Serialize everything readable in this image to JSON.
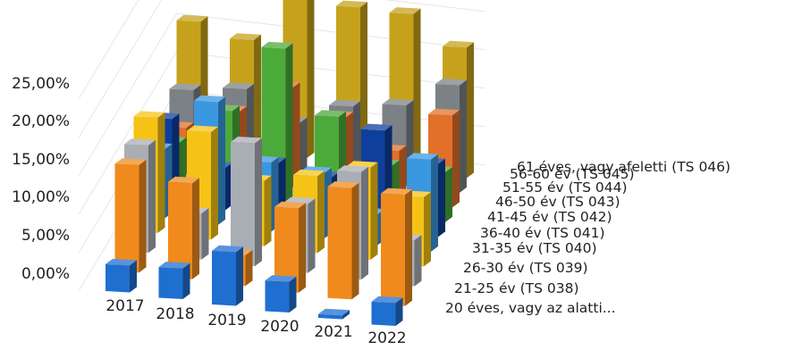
{
  "chart_data": {
    "type": "bar",
    "subtype": "3d-column",
    "categories": [
      "2017",
      "2018",
      "2019",
      "2020",
      "2021",
      "2022"
    ],
    "y_ticks": [
      "0,00%",
      "5,00%",
      "10,00%",
      "15,00%",
      "20,00%",
      "25,00%"
    ],
    "ylim": [
      0,
      25
    ],
    "grid": true,
    "series": [
      {
        "name": "20 éves, vagy az alatti...",
        "color": "#1f6fd1",
        "values": [
          3.5,
          4.0,
          7.0,
          4.0,
          0.5,
          3.0
        ]
      },
      {
        "name": "21-25 év (TS 038)",
        "color": "#f08a1c",
        "values": [
          14.0,
          12.5,
          4.0,
          11.0,
          14.5,
          14.5
        ]
      },
      {
        "name": "26-30 év (TS 039)",
        "color": "#a9aeb5",
        "values": [
          14.0,
          6.0,
          16.0,
          9.0,
          14.0,
          6.0
        ]
      },
      {
        "name": "31-35 év (TS 040)",
        "color": "#f5c316",
        "values": [
          15.0,
          14.0,
          8.5,
          10.0,
          12.0,
          9.0
        ]
      },
      {
        "name": "36-40 év (TS 041)",
        "color": "#3a98e0",
        "values": [
          9.0,
          16.0,
          9.0,
          8.5,
          4.0,
          12.0
        ]
      },
      {
        "name": "41-45 év (TS 042)",
        "color": "#0e3f9c",
        "values": [
          11.0,
          5.5,
          7.0,
          6.0,
          13.0,
          9.5
        ]
      },
      {
        "name": "46-50 év (TS 043)",
        "color": "#4caa3a",
        "values": [
          6.0,
          11.0,
          20.0,
          12.0,
          6.5,
          6.5
        ]
      },
      {
        "name": "51-55 év (TS 044)",
        "color": "#e2702a",
        "values": [
          6.0,
          9.0,
          13.0,
          10.0,
          6.5,
          12.0
        ]
      },
      {
        "name": "56-60 év (TS 045)",
        "color": "#7c8186",
        "values": [
          9.0,
          10.0,
          6.5,
          9.5,
          10.5,
          14.0
        ]
      },
      {
        "name": "61 éves, vagy afeletti (TS 046)",
        "color": "#c6a21c",
        "values": [
          16.0,
          14.5,
          22.0,
          20.5,
          20.5,
          17.0
        ]
      }
    ]
  }
}
